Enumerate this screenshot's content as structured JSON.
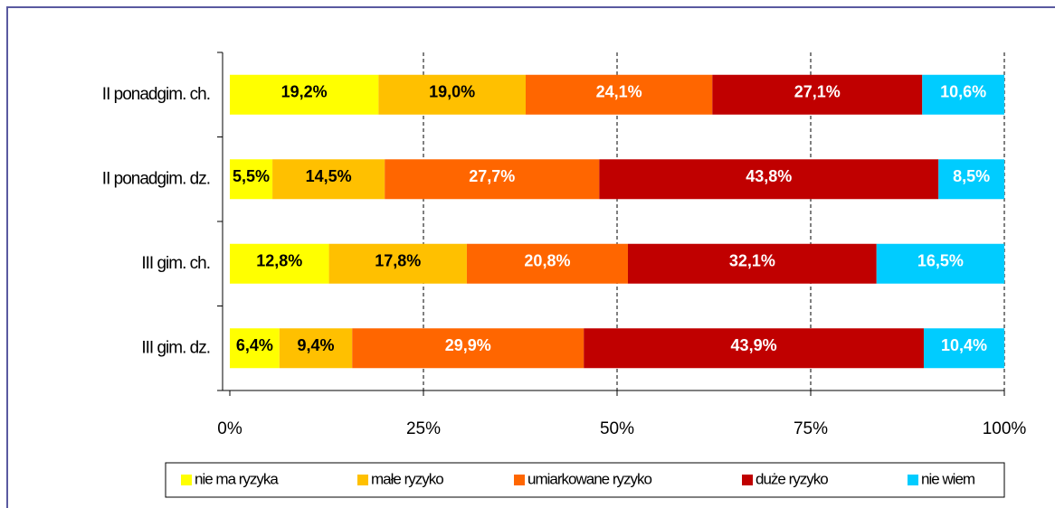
{
  "chart_data": {
    "type": "stacked-bar-horizontal",
    "categories": [
      "II ponadgim. ch.",
      "II ponadgim. dz.",
      "III gim. ch.",
      "III gim. dz."
    ],
    "series": [
      {
        "name": "nie ma ryzyka",
        "color": "#ffff00",
        "values": [
          19.2,
          5.5,
          12.8,
          6.4
        ],
        "value_labels": [
          "19,2%",
          "5,5%",
          "12,8%",
          "6,4%"
        ]
      },
      {
        "name": "małe ryzyko",
        "color": "#ffc000",
        "values": [
          19.0,
          14.5,
          17.8,
          9.4
        ],
        "value_labels": [
          "19,0%",
          "14,5%",
          "17,8%",
          "9,4%"
        ]
      },
      {
        "name": "umiarkowane ryzyko",
        "color": "#ff6600",
        "values": [
          24.1,
          27.7,
          20.8,
          29.9
        ],
        "value_labels": [
          "24,1%",
          "27,7%",
          "20,8%",
          "29,9%"
        ]
      },
      {
        "name": "duże ryzyko",
        "color": "#c00000",
        "values": [
          27.1,
          43.8,
          32.1,
          43.9
        ],
        "value_labels": [
          "27,1%",
          "43,8%",
          "32,1%",
          "43,9%"
        ]
      },
      {
        "name": "nie wiem",
        "color": "#00ccff",
        "values": [
          10.6,
          8.5,
          16.5,
          10.4
        ],
        "value_labels": [
          "10,6%",
          "8,5%",
          "16,5%",
          "10,4%"
        ]
      }
    ],
    "xlim": [
      0,
      100
    ],
    "xticks": [
      {
        "value": 0,
        "label": "0%"
      },
      {
        "value": 25,
        "label": "25%"
      },
      {
        "value": 50,
        "label": "50%"
      },
      {
        "value": 75,
        "label": "75%"
      },
      {
        "value": 100,
        "label": "100%"
      }
    ],
    "grid": true,
    "legend": "bottom"
  }
}
